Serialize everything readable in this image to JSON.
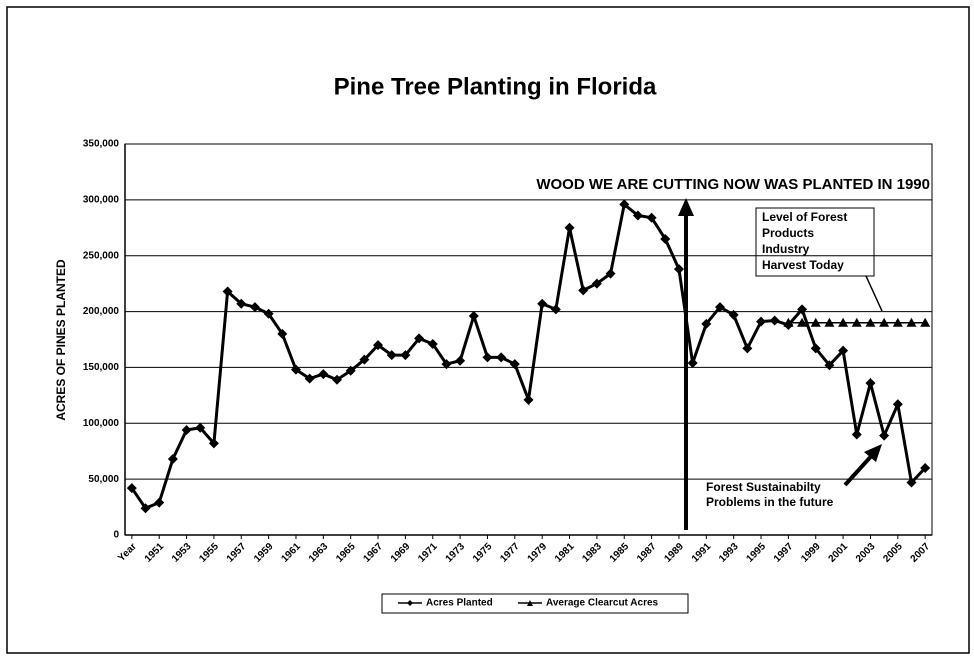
{
  "chart_data": {
    "type": "line",
    "title": "Pine Tree Planting in Florida",
    "y_label": "ACRES OF PINES PLANTED",
    "categories": [
      "Year",
      null,
      "1951",
      null,
      "1953",
      null,
      "1955",
      null,
      "1957",
      null,
      "1959",
      null,
      "1961",
      null,
      "1963",
      null,
      "1965",
      null,
      "1967",
      null,
      "1969",
      null,
      "1971",
      null,
      "1973",
      null,
      "1975",
      null,
      "1977",
      null,
      "1979",
      null,
      "1981",
      null,
      "1983",
      null,
      "1985",
      null,
      "1987",
      null,
      "1989",
      null,
      "1991",
      null,
      "1993",
      null,
      "1995",
      null,
      "1997",
      null,
      "1999",
      null,
      "2001",
      null,
      "2003",
      null,
      "2005",
      null,
      "2007"
    ],
    "series": [
      {
        "name": "Acres Planted",
        "color": "#000000",
        "marker": "diamond",
        "values": [
          42000,
          24000,
          29000,
          68000,
          94000,
          96000,
          82000,
          218000,
          207000,
          204000,
          198000,
          180000,
          148000,
          140000,
          144000,
          139000,
          147000,
          157000,
          170000,
          161000,
          161000,
          176000,
          171000,
          153000,
          156000,
          196000,
          159000,
          159000,
          153000,
          121000,
          207000,
          202000,
          275000,
          219000,
          225000,
          234000,
          296000,
          286000,
          284000,
          265000,
          238000,
          154000,
          189000,
          204000,
          197000,
          167000,
          191000,
          192000,
          188000,
          202000,
          167000,
          152000,
          165000,
          90000,
          136000,
          89000,
          117000,
          47000,
          60000
        ]
      },
      {
        "name": "Average Clearcut Acres",
        "color": "#000000",
        "marker": "triangle",
        "values": [
          null,
          null,
          null,
          null,
          null,
          null,
          null,
          null,
          null,
          null,
          null,
          null,
          null,
          null,
          null,
          null,
          null,
          null,
          null,
          null,
          null,
          null,
          null,
          null,
          null,
          null,
          null,
          null,
          null,
          null,
          null,
          null,
          null,
          null,
          null,
          null,
          null,
          null,
          null,
          null,
          null,
          null,
          null,
          null,
          null,
          null,
          null,
          null,
          190000,
          190000,
          190000,
          190000,
          190000,
          190000,
          190000,
          190000,
          190000,
          190000,
          190000
        ]
      }
    ],
    "ylim": [
      0,
      350000
    ],
    "yticks": [
      0,
      {
        "value": 50000,
        "label": "50,000"
      },
      {
        "value": 100000,
        "label": "100,000"
      },
      {
        "value": 150000,
        "label": "150,000"
      },
      {
        "value": 200000,
        "label": "200,000"
      },
      {
        "value": 250000,
        "label": "250,000"
      },
      {
        "value": 300000,
        "label": "300,000"
      },
      {
        "value": 350000,
        "label": "350,000"
      }
    ],
    "grid": true,
    "legend": "bottom",
    "annotations": {
      "planted": "WOOD WE ARE CUTTING NOW WAS PLANTED IN 1990",
      "harvest": [
        "Level of Forest",
        "Products",
        "Industry",
        "Harvest Today"
      ],
      "sustainability": [
        "Forest Sustainabilty",
        "Problems in the future"
      ]
    }
  }
}
